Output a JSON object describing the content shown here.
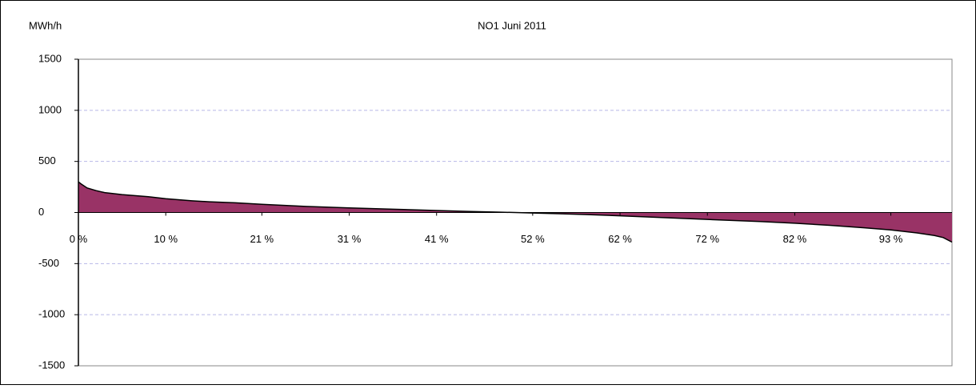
{
  "chart_data": {
    "type": "area",
    "title": "NO1 Juni 2011",
    "y_label": "MWh/h",
    "x": [
      0,
      0.3,
      1,
      2,
      3,
      5,
      8,
      10,
      13,
      15,
      18,
      21,
      26,
      31,
      36,
      41,
      45,
      48,
      50,
      52,
      55,
      58,
      62,
      67,
      72,
      78,
      82,
      86,
      90,
      93,
      96,
      98,
      99,
      100
    ],
    "values": [
      300,
      280,
      240,
      215,
      195,
      175,
      155,
      135,
      115,
      105,
      95,
      80,
      60,
      45,
      32,
      20,
      10,
      4,
      0,
      -5,
      -12,
      -20,
      -32,
      -50,
      -68,
      -88,
      -105,
      -125,
      -150,
      -170,
      -200,
      -225,
      -245,
      -290
    ],
    "color": "#993366",
    "xlim": [
      0,
      100
    ],
    "xticks": [
      {
        "value": 0,
        "label": "0 %"
      },
      {
        "value": 10,
        "label": "10 %"
      },
      {
        "value": 21,
        "label": "21 %"
      },
      {
        "value": 31,
        "label": "31 %"
      },
      {
        "value": 41,
        "label": "41 %"
      },
      {
        "value": 52,
        "label": "52 %"
      },
      {
        "value": 62,
        "label": "62 %"
      },
      {
        "value": 72,
        "label": "72 %"
      },
      {
        "value": 82,
        "label": "82 %"
      },
      {
        "value": 93,
        "label": "93 %"
      }
    ],
    "ylim": [
      -1500,
      1500
    ],
    "yticks": [
      -1500,
      -1000,
      -500,
      0,
      500,
      1000,
      1500
    ],
    "grid": true
  }
}
